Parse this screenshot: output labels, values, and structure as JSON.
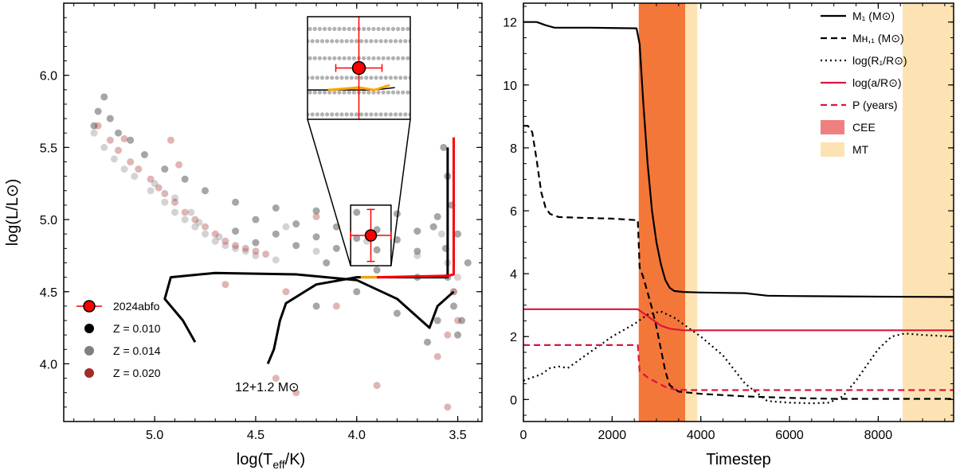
{
  "chart_data": [
    {
      "type": "scatter",
      "title": "",
      "xlabel": "log(T",
      "xlabel_sub": "eff",
      "xlabel_tail": "/K)",
      "ylabel": "log(L/L⊙)",
      "xlim": [
        5.45,
        3.38
      ],
      "ylim": [
        3.6,
        6.5
      ],
      "xticks": [
        5.0,
        4.5,
        4.0,
        3.5
      ],
      "xtick_labels": [
        "5.0",
        "4.5",
        "4.0",
        "3.5"
      ],
      "yticks": [
        4.0,
        4.5,
        5.0,
        5.5,
        6.0
      ],
      "ytick_labels": [
        "4.0",
        "4.5",
        "5.0",
        "5.5",
        "6.0"
      ],
      "annotation": "12+1.2 M⊙",
      "legend_position": "bottom-left",
      "legend": [
        {
          "label": "2024abfo",
          "color": "#ff0000"
        },
        {
          "label": "Z = 0.010",
          "color": "#000000"
        },
        {
          "label": "Z = 0.014",
          "color": "#808080"
        },
        {
          "label": "Z = 0.020",
          "color": "#a52a2a"
        }
      ],
      "observation": {
        "name": "2024abfo",
        "logT": 3.93,
        "logL": 4.89,
        "logT_err": 0.1,
        "logL_err": 0.18
      },
      "inset": {
        "xlim": [
          4.03,
          3.83
        ],
        "ylim": [
          4.68,
          5.1
        ]
      },
      "series": [
        {
          "name": "Z = 0.010",
          "color": "#000000",
          "points": [
            [
              5.25,
              5.85
            ],
            [
              5.28,
              5.75
            ],
            [
              5.22,
              5.7
            ],
            [
              5.3,
              5.65
            ],
            [
              5.18,
              5.6
            ],
            [
              5.12,
              5.55
            ],
            [
              5.05,
              5.45
            ],
            [
              4.95,
              5.35
            ],
            [
              4.85,
              5.28
            ],
            [
              4.75,
              5.2
            ],
            [
              4.6,
              5.12
            ],
            [
              4.4,
              5.08
            ],
            [
              4.2,
              5.06
            ],
            [
              4.0,
              5.05
            ],
            [
              3.8,
              5.04
            ],
            [
              3.6,
              5.02
            ],
            [
              4.5,
              5.0
            ],
            [
              4.3,
              4.97
            ],
            [
              4.1,
              4.95
            ],
            [
              3.9,
              4.93
            ],
            [
              3.7,
              4.92
            ],
            [
              4.6,
              4.92
            ],
            [
              4.4,
              4.9
            ],
            [
              4.2,
              4.88
            ],
            [
              4.0,
              4.87
            ],
            [
              3.8,
              4.86
            ],
            [
              4.5,
              4.84
            ],
            [
              4.3,
              4.82
            ],
            [
              4.1,
              4.8
            ],
            [
              3.9,
              4.79
            ],
            [
              3.7,
              4.78
            ],
            [
              3.55,
              4.6
            ],
            [
              3.52,
              4.4
            ],
            [
              3.5,
              4.2
            ],
            [
              3.55,
              5.3
            ],
            [
              3.57,
              5.5
            ],
            [
              3.6,
              4.3
            ],
            [
              3.65,
              4.15
            ],
            [
              3.8,
              4.35
            ],
            [
              4.0,
              4.5
            ],
            [
              4.2,
              4.4
            ],
            [
              3.7,
              4.6
            ],
            [
              3.9,
              4.65
            ],
            [
              4.15,
              4.7
            ],
            [
              3.5,
              4.9
            ],
            [
              3.53,
              5.1
            ],
            [
              3.56,
              4.8
            ],
            [
              3.62,
              4.95
            ],
            [
              3.45,
              4.7
            ],
            [
              3.48,
              4.3
            ]
          ]
        },
        {
          "name": "Z = 0.014",
          "color": "#808080",
          "points": [
            [
              5.3,
              5.6
            ],
            [
              5.25,
              5.5
            ],
            [
              5.2,
              5.42
            ],
            [
              5.15,
              5.35
            ],
            [
              5.1,
              5.3
            ],
            [
              5.02,
              5.2
            ],
            [
              4.95,
              5.12
            ],
            [
              4.9,
              5.05
            ],
            [
              4.85,
              5.0
            ],
            [
              4.8,
              4.95
            ],
            [
              4.75,
              4.9
            ],
            [
              4.7,
              4.85
            ],
            [
              4.65,
              4.82
            ],
            [
              4.6,
              4.8
            ],
            [
              4.55,
              4.78
            ],
            [
              4.9,
              5.15
            ],
            [
              4.82,
              5.05
            ],
            [
              4.78,
              4.98
            ],
            [
              4.68,
              4.88
            ],
            [
              5.0,
              5.25
            ],
            [
              4.5,
              4.75
            ],
            [
              4.4,
              4.72
            ],
            [
              3.55,
              4.7
            ],
            [
              3.52,
              4.5
            ],
            [
              3.5,
              4.6
            ],
            [
              4.2,
              4.78
            ],
            [
              3.95,
              4.85
            ],
            [
              3.58,
              4.9
            ],
            [
              4.35,
              4.95
            ],
            [
              3.7,
              4.75
            ]
          ]
        },
        {
          "name": "Z = 0.020",
          "color": "#a52a2a",
          "points": [
            [
              5.28,
              5.65
            ],
            [
              5.22,
              5.55
            ],
            [
              5.18,
              5.48
            ],
            [
              5.12,
              5.4
            ],
            [
              5.08,
              5.35
            ],
            [
              5.02,
              5.28
            ],
            [
              4.98,
              5.22
            ],
            [
              4.95,
              5.18
            ],
            [
              4.9,
              5.12
            ],
            [
              4.85,
              5.05
            ],
            [
              4.8,
              5.0
            ],
            [
              4.75,
              4.95
            ],
            [
              4.7,
              4.9
            ],
            [
              4.65,
              4.85
            ],
            [
              4.6,
              4.82
            ],
            [
              4.55,
              4.8
            ],
            [
              4.5,
              4.78
            ],
            [
              4.45,
              4.76
            ],
            [
              5.15,
              5.56
            ],
            [
              4.92,
              5.55
            ],
            [
              4.88,
              5.38
            ],
            [
              4.65,
              4.55
            ],
            [
              3.52,
              4.5
            ],
            [
              3.5,
              4.3
            ],
            [
              3.55,
              4.2
            ],
            [
              3.6,
              4.05
            ],
            [
              4.1,
              4.4
            ],
            [
              4.35,
              4.5
            ],
            [
              4.4,
              3.9
            ],
            [
              3.9,
              3.85
            ],
            [
              3.55,
              3.7
            ],
            [
              4.2,
              5.02
            ],
            [
              4.3,
              3.8
            ]
          ]
        }
      ],
      "tracks": [
        {
          "name": "12+1.2 M⊙ track (black)",
          "color": "#000000",
          "points": [
            [
              4.44,
              4.0
            ],
            [
              4.41,
              4.1
            ],
            [
              4.38,
              4.3
            ],
            [
              4.35,
              4.42
            ],
            [
              4.2,
              4.55
            ],
            [
              4.0,
              4.6
            ],
            [
              3.8,
              4.6
            ],
            [
              3.6,
              4.6
            ],
            [
              3.55,
              4.6
            ],
            [
              3.55,
              5.5
            ]
          ]
        },
        {
          "name": "12+1.2 M⊙ loop (black)",
          "color": "#000000",
          "points": [
            [
              4.8,
              4.15
            ],
            [
              4.86,
              4.3
            ],
            [
              4.95,
              4.45
            ],
            [
              4.92,
              4.6
            ],
            [
              4.7,
              4.63
            ],
            [
              4.3,
              4.62
            ],
            [
              4.0,
              4.58
            ],
            [
              3.8,
              4.45
            ],
            [
              3.68,
              4.3
            ],
            [
              3.64,
              4.25
            ],
            [
              3.6,
              4.4
            ],
            [
              3.52,
              4.5
            ]
          ]
        },
        {
          "name": "binary track (orange)",
          "color": "#ffa500",
          "points": [
            [
              3.98,
              4.6
            ],
            [
              3.9,
              4.6
            ]
          ]
        },
        {
          "name": "binary track (red)",
          "color": "#ff0000",
          "points": [
            [
              3.9,
              4.6
            ],
            [
              3.55,
              4.61
            ],
            [
              3.52,
              4.62
            ],
            [
              3.52,
              5.57
            ]
          ]
        }
      ]
    },
    {
      "type": "line",
      "title": "",
      "xlabel": "Timestep",
      "ylabel": "",
      "xlim": [
        0,
        9700
      ],
      "ylim": [
        -0.7,
        12.6
      ],
      "xticks": [
        0,
        2000,
        4000,
        6000,
        8000
      ],
      "xtick_labels": [
        "0",
        "2000",
        "4000",
        "6000",
        "8000"
      ],
      "yticks": [
        0,
        2,
        4,
        6,
        8,
        10,
        12
      ],
      "ytick_labels": [
        "0",
        "2",
        "4",
        "6",
        "8",
        "10",
        "12"
      ],
      "legend_position": "top-right",
      "legend": [
        {
          "label": "M₁ (M⊙)",
          "color": "#000000",
          "style": "solid"
        },
        {
          "label": "Mʜ,₁ (M⊙)",
          "color": "#000000",
          "style": "dashed"
        },
        {
          "label": "log(R₁/R⊙)",
          "color": "#000000",
          "style": "dotted"
        },
        {
          "label": "log(a/R⊙)",
          "color": "#dc143c",
          "style": "solid"
        },
        {
          "label": "P (years)",
          "color": "#dc143c",
          "style": "dashed"
        },
        {
          "label": "CEE",
          "color": "#f08080",
          "style": "patch"
        },
        {
          "label": "MT",
          "color": "#fde3b3",
          "style": "patch"
        }
      ],
      "shaded": [
        {
          "name": "CEE",
          "x": [
            2600,
            3650
          ],
          "color": "#f4773a"
        },
        {
          "name": "MT",
          "x": [
            3650,
            3920
          ],
          "color": "#fde3b3"
        },
        {
          "name": "MT",
          "x": [
            8550,
            9700
          ],
          "color": "#fde3b3"
        }
      ],
      "series": [
        {
          "name": "M1",
          "color": "#000000",
          "dash": "none",
          "x": [
            0,
            300,
            500,
            700,
            1500,
            2550,
            2620,
            2700,
            2800,
            2900,
            3000,
            3100,
            3200,
            3300,
            3400,
            3600,
            4000,
            5000,
            5500,
            6000,
            8000,
            9700
          ],
          "y": [
            12.0,
            12.0,
            11.9,
            11.82,
            11.82,
            11.8,
            11.3,
            9.5,
            7.5,
            6.0,
            5.0,
            4.3,
            3.8,
            3.55,
            3.45,
            3.42,
            3.4,
            3.38,
            3.3,
            3.29,
            3.27,
            3.26
          ]
        },
        {
          "name": "MH1",
          "color": "#000000",
          "dash": "8,5",
          "x": [
            0,
            100,
            200,
            300,
            400,
            500,
            600,
            700,
            800,
            1200,
            2000,
            2580,
            2620,
            2700,
            2800,
            2900,
            3000,
            3100,
            3200,
            3300,
            3500,
            4000,
            5000,
            6000,
            7000,
            9700
          ],
          "y": [
            8.7,
            8.7,
            8.5,
            7.6,
            6.6,
            6.1,
            5.9,
            5.85,
            5.8,
            5.78,
            5.75,
            5.7,
            4.2,
            3.9,
            3.4,
            2.9,
            2.3,
            1.6,
            0.9,
            0.45,
            0.25,
            0.18,
            0.1,
            0.05,
            0.02,
            0.02
          ]
        },
        {
          "name": "logR1",
          "color": "#000000",
          "dash": "2,4",
          "x": [
            0,
            200,
            400,
            600,
            800,
            1000,
            1400,
            2000,
            2500,
            2800,
            3100,
            3400,
            3700,
            4000,
            4500,
            5000,
            5500,
            6000,
            6500,
            6900,
            7200,
            7500,
            7800,
            8000,
            8300,
            8600,
            9000,
            9700
          ],
          "y": [
            0.6,
            0.7,
            0.8,
            1.0,
            1.05,
            1.0,
            1.4,
            2.0,
            2.4,
            2.7,
            2.8,
            2.6,
            2.3,
            2.0,
            1.4,
            0.5,
            -0.05,
            -0.1,
            -0.12,
            -0.1,
            0.1,
            0.6,
            1.2,
            1.6,
            2.0,
            2.1,
            2.05,
            2.0
          ]
        },
        {
          "name": "loga",
          "color": "#dc143c",
          "dash": "none",
          "x": [
            0,
            2580,
            2700,
            2900,
            3100,
            3300,
            3600,
            4000,
            6000,
            9700
          ],
          "y": [
            2.87,
            2.87,
            2.75,
            2.55,
            2.35,
            2.25,
            2.2,
            2.2,
            2.2,
            2.2
          ]
        },
        {
          "name": "P",
          "color": "#dc143c",
          "dash": "8,5",
          "x": [
            0,
            2580,
            2620,
            2800,
            3000,
            3200,
            3400,
            3700,
            4500,
            9700
          ],
          "y": [
            1.73,
            1.73,
            0.9,
            0.7,
            0.55,
            0.4,
            0.32,
            0.3,
            0.3,
            0.3
          ]
        }
      ]
    }
  ]
}
